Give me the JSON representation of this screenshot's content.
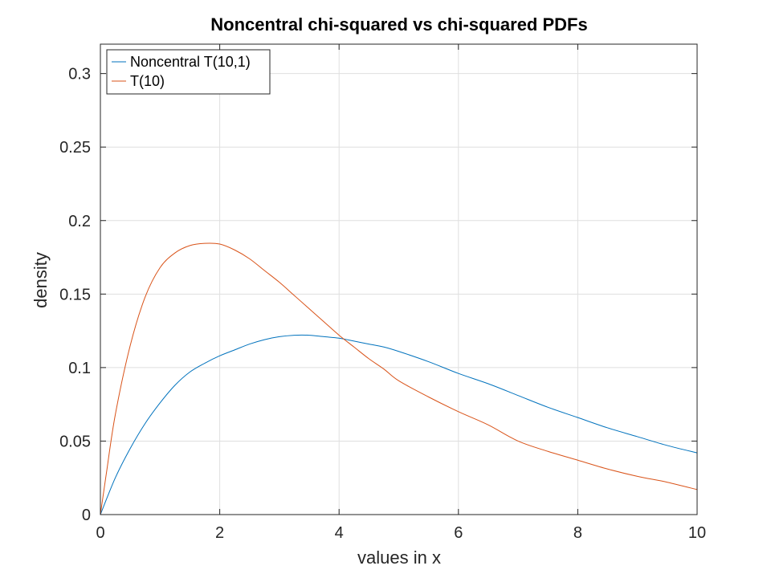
{
  "chart_data": {
    "type": "line",
    "title": "Noncentral chi-squared vs chi-squared PDFs",
    "xlabel": "values in x",
    "ylabel": "density",
    "xlim": [
      0,
      10
    ],
    "ylim": [
      0,
      0.32
    ],
    "xticks": [
      0,
      2,
      4,
      6,
      8,
      10
    ],
    "xtick_labels": [
      "0",
      "2",
      "4",
      "6",
      "8",
      "10"
    ],
    "yticks": [
      0,
      0.05,
      0.1,
      0.15,
      0.2,
      0.25,
      0.3
    ],
    "ytick_labels": [
      "0",
      "0.05",
      "0.1",
      "0.15",
      "0.2",
      "0.25",
      "0.3"
    ],
    "grid": true,
    "legend_position": "top-left",
    "series": [
      {
        "name": "Noncentral T(10,1)",
        "color": "#0072BD",
        "x": [
          0,
          0.25,
          0.5,
          0.75,
          1,
          1.25,
          1.5,
          1.75,
          2,
          2.25,
          2.5,
          2.75,
          3,
          3.25,
          3.5,
          3.75,
          4,
          4.25,
          4.5,
          4.75,
          5,
          5.5,
          6,
          6.5,
          7,
          7.5,
          8,
          8.5,
          9,
          9.5,
          10
        ],
        "y": [
          0,
          0.025,
          0.045,
          0.062,
          0.076,
          0.088,
          0.097,
          0.103,
          0.108,
          0.112,
          0.116,
          0.119,
          0.121,
          0.122,
          0.122,
          0.121,
          0.12,
          0.118,
          0.116,
          0.114,
          0.111,
          0.104,
          0.096,
          0.089,
          0.081,
          0.073,
          0.066,
          0.059,
          0.053,
          0.047,
          0.042
        ]
      },
      {
        "name": "T(10)",
        "color": "#D95319",
        "x": [
          0,
          0.1,
          0.25,
          0.5,
          0.75,
          1,
          1.25,
          1.5,
          1.75,
          2,
          2.25,
          2.5,
          2.75,
          3,
          3.25,
          3.5,
          3.75,
          4,
          4.25,
          4.5,
          4.75,
          5,
          5.5,
          6,
          6.5,
          7,
          7.5,
          8,
          8.5,
          9,
          9.5,
          10
        ],
        "y": [
          0,
          0.028,
          0.068,
          0.115,
          0.148,
          0.168,
          0.178,
          0.183,
          0.1845,
          0.184,
          0.18,
          0.174,
          0.166,
          0.158,
          0.149,
          0.14,
          0.131,
          0.122,
          0.114,
          0.106,
          0.099,
          0.091,
          0.08,
          0.07,
          0.061,
          0.05,
          0.043,
          0.037,
          0.031,
          0.026,
          0.022,
          0.017
        ]
      }
    ]
  }
}
